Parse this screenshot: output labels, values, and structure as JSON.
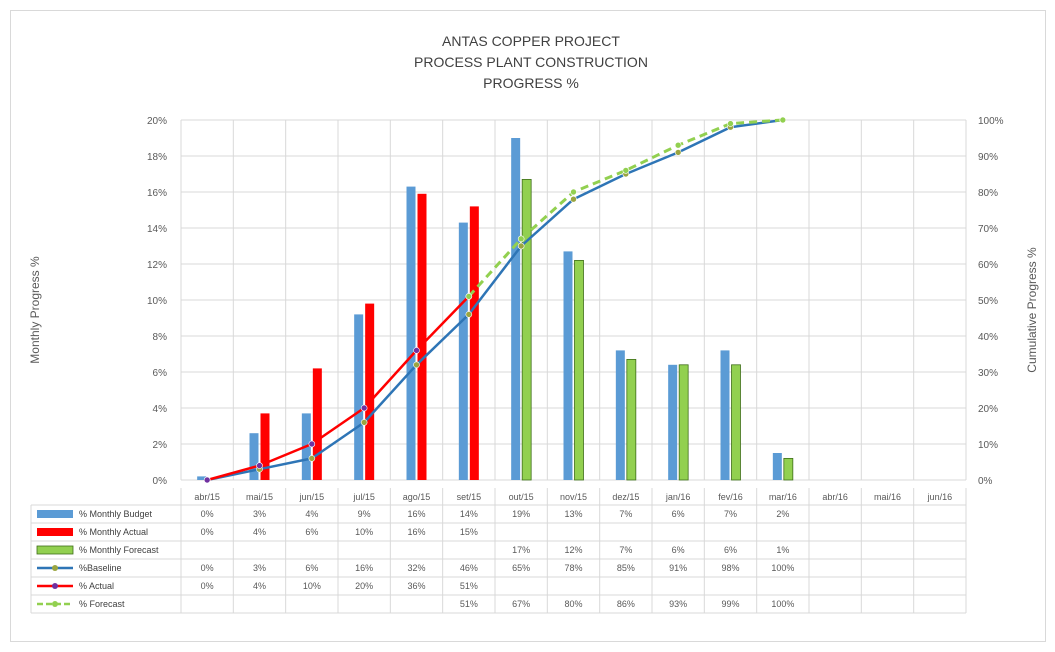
{
  "chart_data": {
    "type": "bar",
    "title": [
      "ANTAS COPPER PROJECT",
      "PROCESS PLANT CONSTRUCTION",
      "PROGRESS %"
    ],
    "ylabel": "Monthly Progress %",
    "y2label": "Cumulative  Progress %",
    "ylim": [
      0,
      20
    ],
    "y2lim": [
      0,
      100
    ],
    "yticks": [
      "0%",
      "2%",
      "4%",
      "6%",
      "8%",
      "10%",
      "12%",
      "14%",
      "16%",
      "18%",
      "20%"
    ],
    "y2ticks": [
      "0%",
      "10%",
      "20%",
      "30%",
      "40%",
      "50%",
      "60%",
      "70%",
      "80%",
      "90%",
      "100%"
    ],
    "categories": [
      "abr/15",
      "mai/15",
      "jun/15",
      "jul/15",
      "ago/15",
      "set/15",
      "out/15",
      "nov/15",
      "dez/15",
      "jan/16",
      "fev/16",
      "mar/16",
      "abr/16",
      "mai/16",
      "jun/16"
    ],
    "bar_series": [
      {
        "name": "% Monthly Budget",
        "color": "#5b9bd5",
        "values": [
          0.2,
          2.6,
          3.7,
          9.2,
          16.3,
          14.3,
          19.0,
          12.7,
          7.2,
          6.4,
          7.2,
          1.5,
          null,
          null,
          null
        ]
      },
      {
        "name": "% Monthly Actual",
        "color": "#ff0000",
        "values": [
          0,
          3.7,
          6.2,
          9.8,
          15.9,
          15.2,
          null,
          null,
          null,
          null,
          null,
          null,
          null,
          null,
          null
        ]
      },
      {
        "name": "% Monthly Forecast",
        "color": "#92d050",
        "values": [
          null,
          null,
          null,
          null,
          null,
          null,
          16.7,
          12.2,
          6.7,
          6.4,
          6.4,
          1.2,
          null,
          null,
          null
        ]
      }
    ],
    "line_series": [
      {
        "name": "%Baseline",
        "color": "#2e75b6",
        "marker": "#9aa540",
        "dash": false,
        "values": [
          0,
          3,
          6,
          16,
          32,
          46,
          65,
          78,
          85,
          91,
          98,
          100,
          null,
          null,
          null
        ]
      },
      {
        "name": "% Actual",
        "color": "#ff0000",
        "marker": "#7030a0",
        "dash": false,
        "values": [
          0,
          4,
          10,
          20,
          36,
          51,
          null,
          null,
          null,
          null,
          null,
          null,
          null,
          null,
          null
        ]
      },
      {
        "name": "% Forecast",
        "color": "#92d050",
        "marker": "#92d050",
        "dash": true,
        "values": [
          null,
          null,
          null,
          null,
          null,
          51,
          67,
          80,
          86,
          93,
          99,
          100,
          null,
          null,
          null
        ]
      }
    ],
    "table": [
      {
        "label": "% Monthly Budget",
        "cells": [
          "0%",
          "3%",
          "4%",
          "9%",
          "16%",
          "14%",
          "19%",
          "13%",
          "7%",
          "6%",
          "7%",
          "2%",
          "",
          "",
          ""
        ]
      },
      {
        "label": "% Monthly Actual",
        "cells": [
          "0%",
          "4%",
          "6%",
          "10%",
          "16%",
          "15%",
          "",
          "",
          "",
          "",
          "",
          "",
          "",
          "",
          ""
        ]
      },
      {
        "label": "% Monthly Forecast",
        "cells": [
          "",
          "",
          "",
          "",
          "",
          "",
          "17%",
          "12%",
          "7%",
          "6%",
          "6%",
          "1%",
          "",
          "",
          ""
        ]
      },
      {
        "label": "%Baseline",
        "cells": [
          "0%",
          "3%",
          "6%",
          "16%",
          "32%",
          "46%",
          "65%",
          "78%",
          "85%",
          "91%",
          "98%",
          "100%",
          "",
          "",
          ""
        ]
      },
      {
        "label": "% Actual",
        "cells": [
          "0%",
          "4%",
          "10%",
          "20%",
          "36%",
          "51%",
          "",
          "",
          "",
          "",
          "",
          "",
          "",
          "",
          ""
        ]
      },
      {
        "label": "% Forecast",
        "cells": [
          "",
          "",
          "",
          "",
          "",
          "51%",
          "67%",
          "80%",
          "86%",
          "93%",
          "99%",
          "100%",
          "",
          "",
          ""
        ]
      }
    ],
    "grid": true
  }
}
